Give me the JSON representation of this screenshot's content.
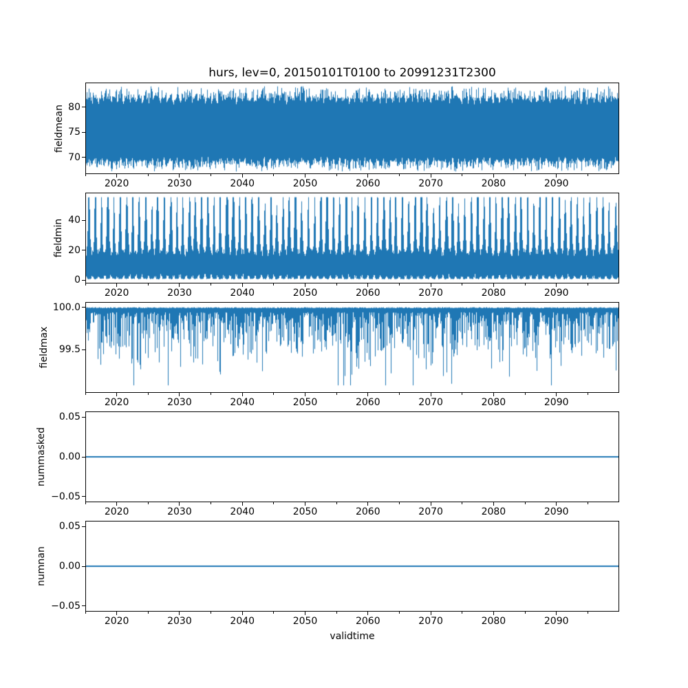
{
  "title": "hurs, lev=0, 20150101T0100 to 20991231T2300",
  "accent_color": "#1f77b4",
  "x_axis": {
    "label": "validtime",
    "lim": [
      2015,
      2100
    ],
    "major_ticks": [
      2020,
      2030,
      2040,
      2050,
      2060,
      2070,
      2080,
      2090
    ],
    "major_tick_labels": [
      "2020",
      "2030",
      "2040",
      "2050",
      "2060",
      "2070",
      "2080",
      "2090"
    ],
    "minor_ticks": [
      2015,
      2025,
      2035,
      2045,
      2055,
      2065,
      2075,
      2085,
      2095
    ]
  },
  "chart_data": {
    "type": "line",
    "title": "hurs, lev=0, 20150101T0100 to 20991231T2300",
    "xlabel": "validtime",
    "x_range_dates": [
      "20150101T0100",
      "20991231T2300"
    ],
    "x_lim_years": [
      2015,
      2100
    ],
    "grid": false,
    "legend": "none",
    "line_color": "#1f77b4",
    "subplots": [
      {
        "id": "fieldmean",
        "ylabel": "fieldmean",
        "ytick_values": [
          70,
          75,
          80
        ],
        "ytick_labels": [
          "70",
          "75",
          "80"
        ],
        "ylim": [
          66.85,
          84.72
        ],
        "pattern": "dense-noisy-band",
        "gen": {
          "kind": "meanband",
          "seed": 42,
          "band_lo": 70.1,
          "band_hi": 80.5,
          "min": 67.2,
          "max": 84.1
        },
        "data_summary": {
          "min": 67.2,
          "max": 84.1,
          "typical_band": [
            70,
            81
          ],
          "description": "high-frequency oscillation filling a solid band, stationary over 2015-2100"
        }
      },
      {
        "id": "fieldmin",
        "ylabel": "fieldmin",
        "ytick_values": [
          0,
          20,
          40
        ],
        "ytick_labels": [
          "0",
          "20",
          "40"
        ],
        "ylim": [
          -1.8,
          58.2
        ],
        "pattern": "annual-spikes",
        "gen": {
          "kind": "minspikes",
          "seed": 7,
          "base_top": 16,
          "peak_min": 20,
          "peak_amp": 20,
          "bot_min": 0.5,
          "bot_amp": 3.4,
          "max": 55.6
        },
        "data_summary": {
          "min": 0.4,
          "max": 55.6,
          "description": "annual peaks reaching 35-55, valleys near 0-5, solid below ~20"
        }
      },
      {
        "id": "fieldmax",
        "ylabel": "fieldmax",
        "ytick_values": [
          99.5,
          100.0
        ],
        "ytick_labels": [
          "99.5",
          "100.0"
        ],
        "ylim": [
          99.0,
          100.053
        ],
        "pattern": "downward-spikes-from-ceiling",
        "gen": {
          "kind": "maxhang",
          "seed": 13,
          "top": 100.0,
          "d_base": 0.06,
          "d_amp": 0.55,
          "deep_prob": 0.05,
          "d_max": 0.92
        },
        "data_summary": {
          "min": 99.08,
          "max": 100.0,
          "description": "values pinned at 100 with frequent dips to 99.4-99.9 and rare dips to ~99.1"
        }
      },
      {
        "id": "nummasked",
        "ylabel": "nummasked",
        "ytick_values": [
          -0.05,
          0.0,
          0.05
        ],
        "ytick_labels": [
          "−0.05",
          "0.00",
          "0.05"
        ],
        "ylim": [
          -0.0563,
          0.0563
        ],
        "pattern": "constant",
        "gen": {
          "kind": "flat",
          "value": 0.0
        },
        "data_summary": {
          "constant_value": 0.0,
          "description": "flat line at 0.00 for entire period"
        }
      },
      {
        "id": "numnan",
        "ylabel": "numnan",
        "ytick_values": [
          -0.05,
          0.0,
          0.05
        ],
        "ytick_labels": [
          "−0.05",
          "0.00",
          "0.05"
        ],
        "ylim": [
          -0.0563,
          0.0563
        ],
        "pattern": "constant",
        "gen": {
          "kind": "flat",
          "value": 0.0
        },
        "data_summary": {
          "constant_value": 0.0,
          "description": "flat line at 0.00 for entire period"
        }
      }
    ]
  }
}
